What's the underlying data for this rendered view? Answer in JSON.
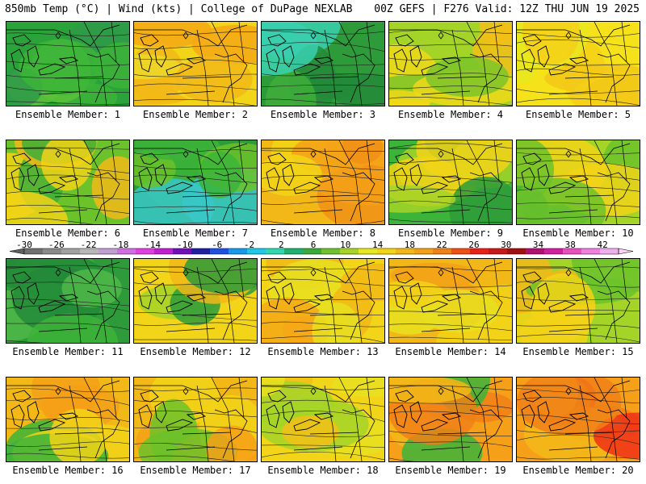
{
  "header": {
    "left": "850mb Temp (°C) | Wind (kts) | College of DuPage NEXLAB",
    "right": "00Z GEFS | F276 Valid: 12Z THU JUN 19 2025"
  },
  "members": [
    {
      "label": "Ensemble Member: 1",
      "palette": [
        "#2aa33a",
        "#3cb43a",
        "#5cc23a",
        "#2f9a4a"
      ]
    },
    {
      "label": "Ensemble Member: 2",
      "palette": [
        "#f2d418",
        "#f2b818",
        "#f5a818",
        "#ecd82a"
      ]
    },
    {
      "label": "Ensemble Member: 3",
      "palette": [
        "#2e9b3a",
        "#238a3a",
        "#3fae3a",
        "#3ad0b0"
      ]
    },
    {
      "label": "Ensemble Member: 4",
      "palette": [
        "#a4d428",
        "#f0d818",
        "#7cc42a",
        "#f2c018"
      ]
    },
    {
      "label": "Ensemble Member: 5",
      "palette": [
        "#f5e21a",
        "#f4d018",
        "#e8e820",
        "#f2c818"
      ]
    },
    {
      "label": "Ensemble Member: 6",
      "palette": [
        "#6cc22a",
        "#f2d418",
        "#3fae3a",
        "#f2b818"
      ]
    },
    {
      "label": "Ensemble Member: 7",
      "palette": [
        "#2e9b3a",
        "#3cb43a",
        "#38c8c8",
        "#6cc22a"
      ]
    },
    {
      "label": "Ensemble Member: 8",
      "palette": [
        "#f2b818",
        "#f5a018",
        "#f2d418",
        "#f09018"
      ]
    },
    {
      "label": "Ensemble Member: 9",
      "palette": [
        "#3cb43a",
        "#a4d428",
        "#f2d418",
        "#2e9b3a"
      ]
    },
    {
      "label": "Ensemble Member: 10",
      "palette": [
        "#a4d428",
        "#6cc22a",
        "#3fae3a",
        "#f2d418"
      ]
    },
    {
      "label": "Ensemble Member: 11",
      "palette": [
        "#2e9b3a",
        "#3cb43a",
        "#238a3a",
        "#4fb84a"
      ]
    },
    {
      "label": "Ensemble Member: 12",
      "palette": [
        "#f2d418",
        "#2e9b3a",
        "#a4d428",
        "#f2b818"
      ]
    },
    {
      "label": "Ensemble Member: 13",
      "palette": [
        "#f2d418",
        "#f2b818",
        "#f5a818",
        "#e8e020"
      ]
    },
    {
      "label": "Ensemble Member: 14",
      "palette": [
        "#f2b818",
        "#f2d418",
        "#f5a018",
        "#e8e020"
      ]
    },
    {
      "label": "Ensemble Member: 15",
      "palette": [
        "#a4d428",
        "#f2d418",
        "#f2b818",
        "#6cc22a"
      ]
    },
    {
      "label": "Ensemble Member: 16",
      "palette": [
        "#f2b818",
        "#f2d418",
        "#3cb43a",
        "#f5a018"
      ]
    },
    {
      "label": "Ensemble Member: 17",
      "palette": [
        "#f2b818",
        "#f5a018",
        "#f2d418",
        "#6cc22a"
      ]
    },
    {
      "label": "Ensemble Member: 18",
      "palette": [
        "#f2d418",
        "#e8e020",
        "#a4d428",
        "#f2c018"
      ]
    },
    {
      "label": "Ensemble Member: 19",
      "palette": [
        "#f5a018",
        "#f2b818",
        "#3cb43a",
        "#f08018"
      ]
    },
    {
      "label": "Ensemble Member: 20",
      "palette": [
        "#f5a018",
        "#f08018",
        "#ee3018",
        "#f2b818"
      ]
    }
  ],
  "colorbar": {
    "ticks": [
      "-30",
      "-26",
      "-22",
      "-18",
      "-14",
      "-10",
      "-6",
      "-2",
      "2",
      "6",
      "10",
      "14",
      "18",
      "22",
      "26",
      "30",
      "34",
      "38",
      "42"
    ],
    "colors": [
      "#707070",
      "#8a8a8a",
      "#a0a0a0",
      "#b8b8b8",
      "#c0a0d0",
      "#d070e0",
      "#e040e0",
      "#c020d0",
      "#7010b8",
      "#2020a0",
      "#2050e0",
      "#1898e8",
      "#20c8e8",
      "#30d8b0",
      "#20b070",
      "#3aa83a",
      "#70c030",
      "#a8d428",
      "#e8e820",
      "#f2d418",
      "#f2b818",
      "#f2a018",
      "#f08018",
      "#ee5018",
      "#e82018",
      "#c81818",
      "#a01010",
      "#b01070",
      "#d020a0",
      "#e850c0",
      "#f080e0",
      "#f0b0f0"
    ]
  }
}
